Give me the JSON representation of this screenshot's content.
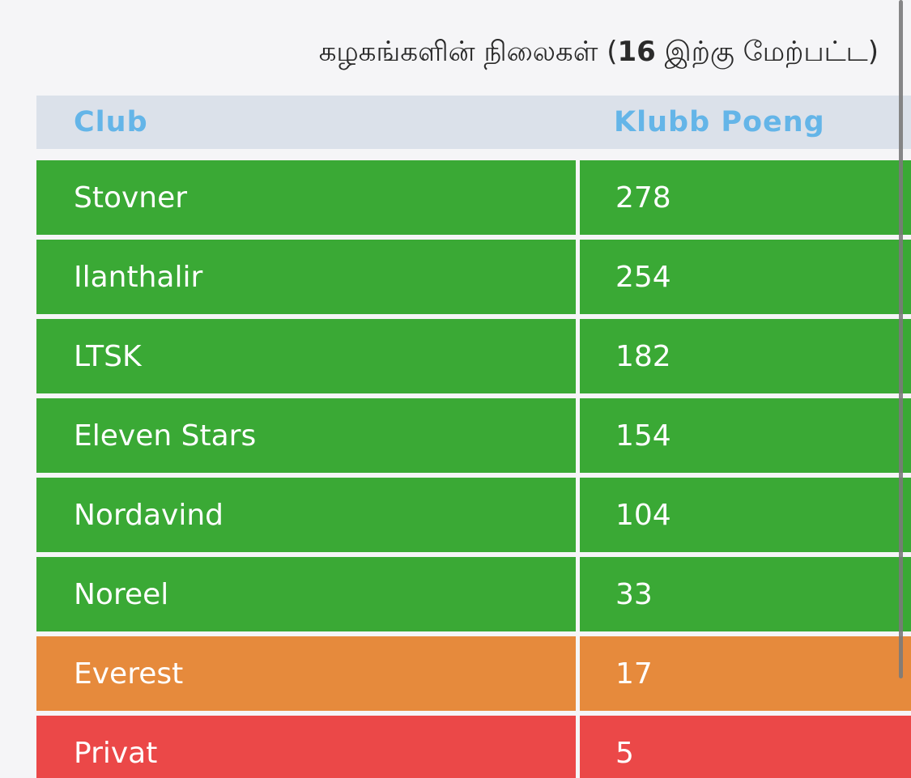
{
  "title": {
    "prefix": "கழகங்களின் நிலைகள் (",
    "bold": "16",
    "suffix": " இற்கு மேற்பட்ட)"
  },
  "table": {
    "headers": [
      "Club",
      "Klubb Poeng"
    ],
    "rows": [
      {
        "club": "Stovner",
        "points": "278",
        "color": "#3aa935"
      },
      {
        "club": "Ilanthalir",
        "points": "254",
        "color": "#3aa935"
      },
      {
        "club": "LTSK",
        "points": "182",
        "color": "#3aa935"
      },
      {
        "club": "Eleven Stars",
        "points": "154",
        "color": "#3aa935"
      },
      {
        "club": "Nordavind",
        "points": "104",
        "color": "#3aa935"
      },
      {
        "club": "Noreel",
        "points": "33",
        "color": "#3aa935"
      },
      {
        "club": "Everest",
        "points": "17",
        "color": "#e68a3c"
      },
      {
        "club": "Privat",
        "points": "5",
        "color": "#eb4848"
      }
    ]
  }
}
